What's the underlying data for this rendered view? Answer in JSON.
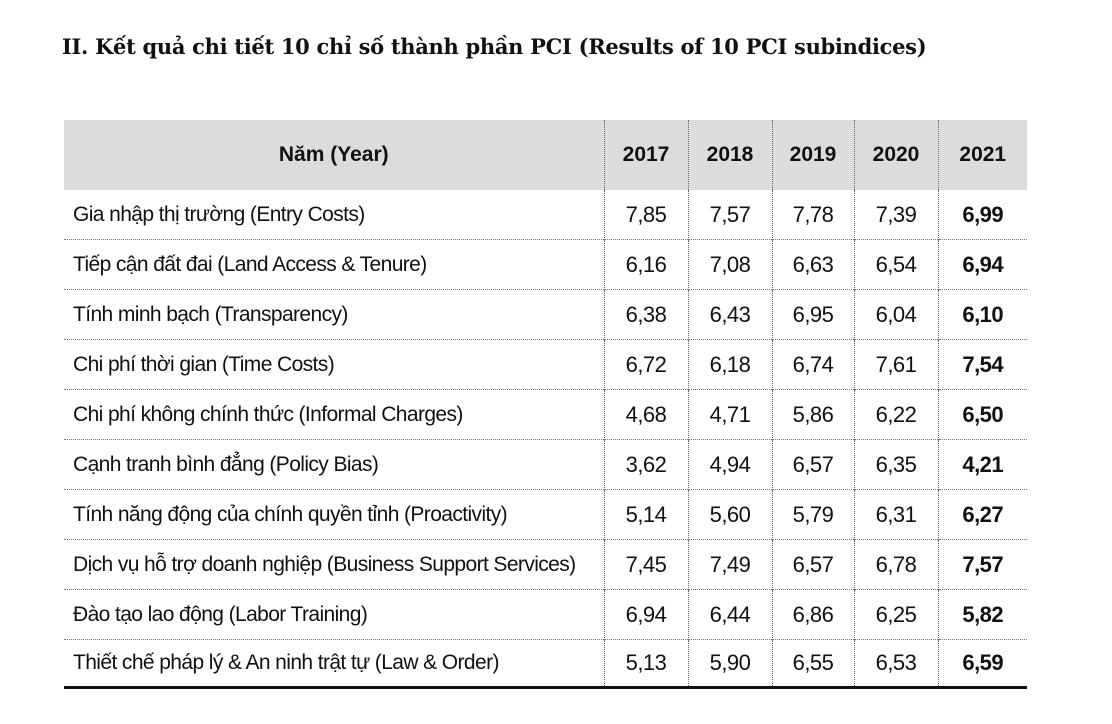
{
  "title": "II. Kết quả chi tiết 10 chỉ số thành phần PCI (Results of 10 PCI subindices)",
  "table": {
    "header": [
      "Năm (Year)",
      "2017",
      "2018",
      "2019",
      "2020",
      "2021"
    ],
    "rows": [
      {
        "label": "Gia nhập thị trường (Entry Costs)",
        "values": [
          "7,85",
          "7,57",
          "7,78",
          "7,39",
          "6,99"
        ]
      },
      {
        "label": "Tiếp cận đất đai (Land Access & Tenure)",
        "values": [
          "6,16",
          "7,08",
          "6,63",
          "6,54",
          "6,94"
        ]
      },
      {
        "label": "Tính minh bạch (Transparency)",
        "values": [
          "6,38",
          "6,43",
          "6,95",
          "6,04",
          "6,10"
        ]
      },
      {
        "label": "Chi phí thời gian (Time Costs)",
        "values": [
          "6,72",
          "6,18",
          "6,74",
          "7,61",
          "7,54"
        ]
      },
      {
        "label": "Chi phí không chính thức (Informal Charges)",
        "values": [
          "4,68",
          "4,71",
          "5,86",
          "6,22",
          "6,50"
        ]
      },
      {
        "label": "Cạnh tranh bình đẳng (Policy Bias)",
        "values": [
          "3,62",
          "4,94",
          "6,57",
          "6,35",
          "4,21"
        ]
      },
      {
        "label": "Tính năng động của chính quyền tỉnh (Proactivity)",
        "values": [
          "5,14",
          "5,60",
          "5,79",
          "6,31",
          "6,27"
        ]
      },
      {
        "label": "Dịch vụ hỗ trợ doanh nghiệp (Business Support Services)",
        "values": [
          "7,45",
          "7,49",
          "6,57",
          "6,78",
          "7,57"
        ]
      },
      {
        "label": "Đào tạo lao động (Labor Training)",
        "values": [
          "6,94",
          "6,44",
          "6,86",
          "6,25",
          "5,82"
        ]
      },
      {
        "label": "Thiết chế pháp lý & An ninh trật tự (Law & Order)",
        "values": [
          "5,13",
          "5,90",
          "6,55",
          "6,53",
          "6,59"
        ]
      }
    ]
  }
}
